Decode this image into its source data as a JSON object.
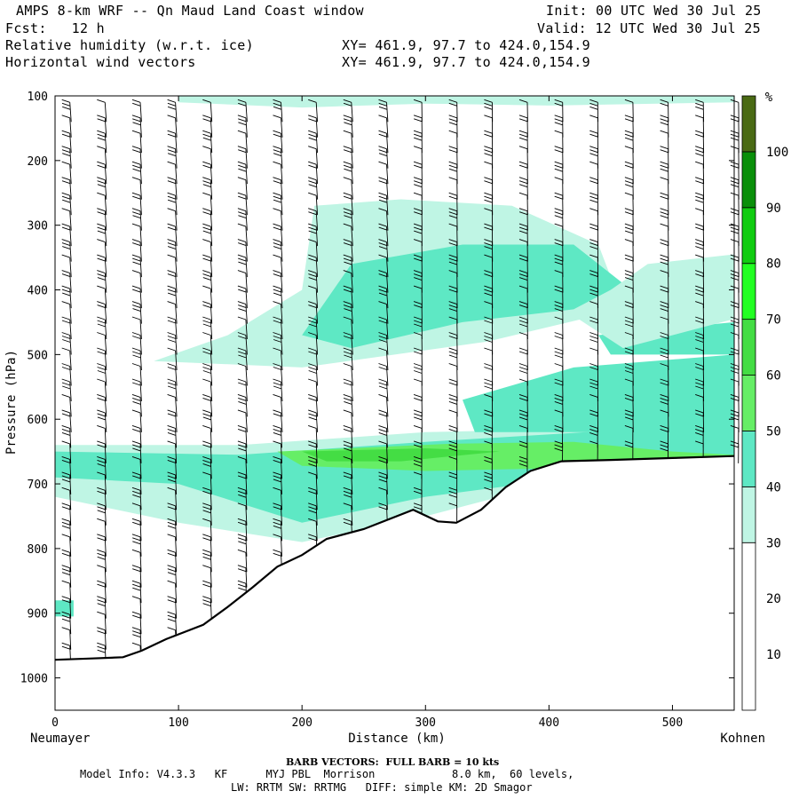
{
  "header": {
    "title": "AMPS 8-km WRF -- Qn Maud Land Coast window",
    "forecast": "Fcst:   12 h",
    "init": "Init: 00 UTC Wed 30 Jul 25",
    "valid": "Valid: 12 UTC Wed 30 Jul 25",
    "field1": "Relative humidity (w.r.t. ice)",
    "field2": "Horizontal wind vectors",
    "xy1": "XY= 461.9, 97.7 to 424.0,154.9",
    "xy2": "XY= 461.9, 97.7 to 424.0,154.9"
  },
  "footer": {
    "barb_note": "BARB VECTORS:  FULL BARB = 10 kts",
    "model_info": "Model Info: V4.3.3   KF      MYJ PBL  Morrison            8.0 km,  60 levels,",
    "physics": "LW: RRTM SW: RRTMG   DIFF: simple KM: 2D Smagor"
  },
  "chart_data": {
    "type": "heatmap",
    "xlabel": "Distance (km)",
    "ylabel": "Pressure (hPa)",
    "xlim": [
      0,
      550
    ],
    "ylim": [
      1050,
      100
    ],
    "x_ticks": [
      0,
      100,
      200,
      300,
      400,
      500
    ],
    "y_ticks": [
      100,
      200,
      300,
      400,
      500,
      600,
      700,
      800,
      900,
      1000
    ],
    "x_left_label": "Neumayer",
    "x_right_label": "Kohnen",
    "colorbar": {
      "unit": "%",
      "ticks": [
        10,
        20,
        30,
        40,
        50,
        60,
        70,
        80,
        90,
        100
      ],
      "levels": [
        {
          "min": 0,
          "max": 30,
          "color": "#ffffff"
        },
        {
          "min": 30,
          "max": 40,
          "color": "#bff5e4"
        },
        {
          "min": 40,
          "max": 50,
          "color": "#5ee8c4"
        },
        {
          "min": 50,
          "max": 60,
          "color": "#66ee66"
        },
        {
          "min": 60,
          "max": 70,
          "color": "#44dd44"
        },
        {
          "min": 70,
          "max": 80,
          "color": "#22ff22"
        },
        {
          "min": 80,
          "max": 90,
          "color": "#11cc11"
        },
        {
          "min": 90,
          "max": 100,
          "color": "#0a8f0a"
        },
        {
          "min": 100,
          "max": 110,
          "color": "#4a6a14"
        }
      ]
    },
    "terrain_surface": [
      {
        "x": 0,
        "p": 972
      },
      {
        "x": 30,
        "p": 970
      },
      {
        "x": 55,
        "p": 968
      },
      {
        "x": 70,
        "p": 958
      },
      {
        "x": 90,
        "p": 940
      },
      {
        "x": 120,
        "p": 918
      },
      {
        "x": 140,
        "p": 890
      },
      {
        "x": 160,
        "p": 860
      },
      {
        "x": 180,
        "p": 828
      },
      {
        "x": 200,
        "p": 810
      },
      {
        "x": 220,
        "p": 785
      },
      {
        "x": 250,
        "p": 770
      },
      {
        "x": 290,
        "p": 740
      },
      {
        "x": 310,
        "p": 758
      },
      {
        "x": 325,
        "p": 760
      },
      {
        "x": 345,
        "p": 740
      },
      {
        "x": 365,
        "p": 705
      },
      {
        "x": 385,
        "p": 680
      },
      {
        "x": 410,
        "p": 665
      },
      {
        "x": 450,
        "p": 663
      },
      {
        "x": 500,
        "p": 660
      },
      {
        "x": 550,
        "p": 657
      }
    ],
    "rh_regions": [
      {
        "level": 30,
        "points": [
          [
            0,
            640
          ],
          [
            150,
            640
          ],
          [
            300,
            620
          ],
          [
            420,
            615
          ],
          [
            550,
            612
          ],
          [
            550,
            700
          ],
          [
            420,
            690
          ],
          [
            300,
            750
          ],
          [
            200,
            790
          ],
          [
            100,
            760
          ],
          [
            0,
            720
          ]
        ]
      },
      {
        "level": 40,
        "points": [
          [
            0,
            650
          ],
          [
            150,
            655
          ],
          [
            300,
            635
          ],
          [
            430,
            620
          ],
          [
            550,
            615
          ],
          [
            550,
            668
          ],
          [
            420,
            690
          ],
          [
            300,
            720
          ],
          [
            200,
            760
          ],
          [
            100,
            700
          ],
          [
            0,
            690
          ]
        ]
      },
      {
        "level": 50,
        "points": [
          [
            180,
            650
          ],
          [
            320,
            638
          ],
          [
            420,
            635
          ],
          [
            500,
            650
          ],
          [
            550,
            655
          ],
          [
            550,
            662
          ],
          [
            430,
            675
          ],
          [
            300,
            680
          ],
          [
            200,
            672
          ]
        ]
      },
      {
        "level": 60,
        "points": [
          [
            200,
            650
          ],
          [
            300,
            645
          ],
          [
            360,
            650
          ],
          [
            280,
            665
          ],
          [
            220,
            665
          ]
        ]
      },
      {
        "level": 30,
        "points": [
          [
            210,
            270
          ],
          [
            280,
            260
          ],
          [
            370,
            270
          ],
          [
            440,
            330
          ],
          [
            460,
            430
          ],
          [
            350,
            480
          ],
          [
            200,
            520
          ],
          [
            80,
            510
          ],
          [
            140,
            470
          ],
          [
            200,
            400
          ]
        ]
      },
      {
        "level": 40,
        "points": [
          [
            240,
            360
          ],
          [
            330,
            330
          ],
          [
            420,
            330
          ],
          [
            460,
            390
          ],
          [
            420,
            430
          ],
          [
            330,
            450
          ],
          [
            240,
            490
          ],
          [
            200,
            470
          ]
        ]
      },
      {
        "level": 40,
        "points": [
          [
            330,
            570
          ],
          [
            420,
            520
          ],
          [
            550,
            500
          ],
          [
            550,
            620
          ],
          [
            400,
            620
          ],
          [
            340,
            620
          ]
        ]
      },
      {
        "level": 40,
        "points": [
          [
            440,
            470
          ],
          [
            550,
            450
          ],
          [
            550,
            500
          ],
          [
            450,
            500
          ]
        ]
      },
      {
        "level": 30,
        "points": [
          [
            420,
            440
          ],
          [
            480,
            360
          ],
          [
            550,
            345
          ],
          [
            550,
            445
          ],
          [
            460,
            490
          ]
        ]
      },
      {
        "level": 30,
        "points": [
          [
            100,
            100
          ],
          [
            550,
            100
          ],
          [
            550,
            110
          ],
          [
            400,
            115
          ],
          [
            300,
            112
          ],
          [
            200,
            118
          ],
          [
            100,
            110
          ]
        ]
      },
      {
        "level": 40,
        "points": [
          [
            0,
            880
          ],
          [
            15,
            880
          ],
          [
            15,
            905
          ],
          [
            0,
            905
          ]
        ]
      }
    ]
  }
}
